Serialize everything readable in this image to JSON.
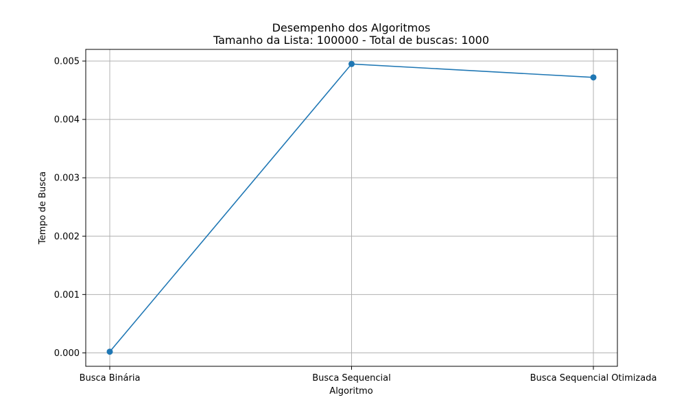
{
  "chart_data": {
    "type": "line",
    "title": "Desempenho dos Algoritmos",
    "subtitle": "Tamanho da Lista: 100000 - Total de buscas: 1000",
    "xlabel": "Algoritmo",
    "ylabel": "Tempo de Busca",
    "categories": [
      "Busca Binária",
      "Busca Sequencial",
      "Busca Sequencial Otimizada"
    ],
    "series": [
      {
        "values": [
          2e-05,
          0.00495,
          0.00472
        ]
      }
    ],
    "ylim": [
      -0.00023,
      0.0052
    ],
    "yticks": [
      0.0,
      0.001,
      0.002,
      0.003,
      0.004,
      0.005
    ],
    "ytick_labels": [
      "0.000",
      "0.001",
      "0.002",
      "0.003",
      "0.004",
      "0.005"
    ],
    "grid": true,
    "colors": {
      "line": "#1f77b4",
      "grid": "#b0b0b0",
      "axis": "#000000"
    }
  }
}
